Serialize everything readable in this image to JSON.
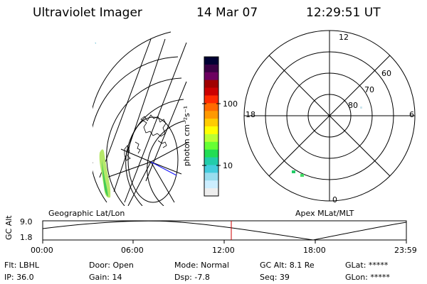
{
  "header": {
    "instrument": "Ultraviolet Imager",
    "date": "14 Mar 07",
    "time": "12:29:51 UT"
  },
  "left_panel": {
    "caption": "Geographic Lat/Lon"
  },
  "right_panel": {
    "caption": "Apex MLat/MLT",
    "mlt_labels": {
      "top": "12",
      "left": "18",
      "right": "6",
      "bottom": "0"
    },
    "mlat_labels": [
      "60",
      "70",
      "80"
    ]
  },
  "colorbar": {
    "unit_label": "photon cm⁻²s⁻¹",
    "tick_100": "100",
    "tick_10": "10",
    "colors": [
      "#000033",
      "#3a0044",
      "#6d0060",
      "#a00000",
      "#cc0000",
      "#ff2a00",
      "#ff6a00",
      "#ff9900",
      "#ffcc00",
      "#ffff00",
      "#bbff33",
      "#66ff33",
      "#22dd55",
      "#22ccaa",
      "#44ccdd",
      "#99ddee",
      "#cceeff",
      "#eeeeee"
    ]
  },
  "altitude_plot": {
    "y_label": "GC Alt",
    "y_max": "9.0",
    "y_min": "1.8",
    "x_ticks": [
      "00:00",
      "06:00",
      "12:00",
      "18:00",
      "23:59"
    ],
    "current_time_marker": "12:29:51",
    "marker_color": "#cc0000"
  },
  "status": {
    "flt": "Flt: LBHL",
    "ip": "IP: 36.0",
    "door": "Door: Open",
    "gain": "Gain: 14",
    "mode": "Mode: Normal",
    "dsp": "Dsp:    -7.8",
    "gc_alt": "GC Alt: 8.1 Re",
    "seq": "Seq: 39",
    "glat": "GLat: *****",
    "glon": "GLon: *****"
  }
}
